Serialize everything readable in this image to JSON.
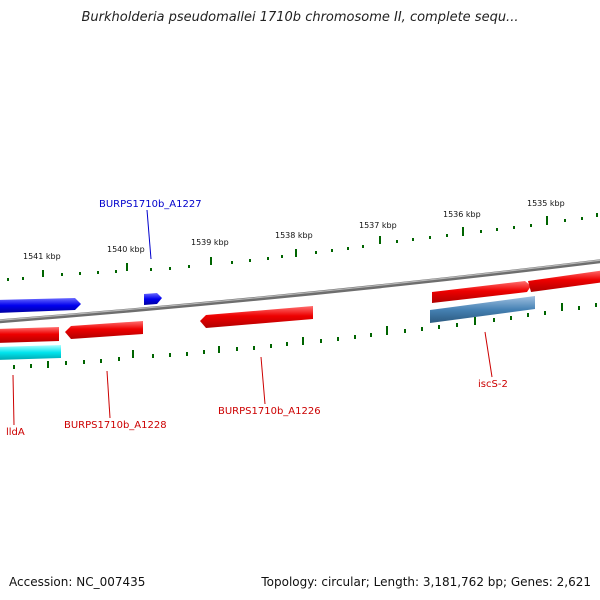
{
  "title": "Burkholderia pseudomallei 1710b chromosome II, complete sequ...",
  "footer": {
    "accession": "Accession: NC_007435",
    "stats": "Topology: circular; Length: 3,181,762 bp; Genes: 2,621"
  },
  "colors": {
    "forward_gene": "#0000ee",
    "reverse_gene": "#ee0000",
    "cyan_gene": "#00e5ee",
    "steel_gene": "#4682b4",
    "backbone": "#808080",
    "ticks": "#006400"
  },
  "scale_labels": [
    "1541 kbp",
    "1540 kbp",
    "1539 kbp",
    "1538 kbp",
    "1537 kbp",
    "1536 kbp",
    "1535 kbp"
  ],
  "gene_labels": {
    "a1227": "BURPS1710b_A1227",
    "llda": "lldA",
    "a1228": "BURPS1710b_A1228",
    "a1226": "BURPS1710b_A1226",
    "iscs2": "iscS-2"
  }
}
